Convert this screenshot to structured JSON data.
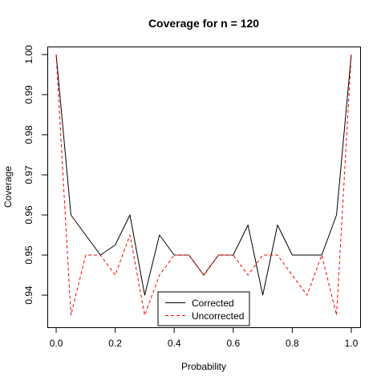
{
  "chart_data": {
    "type": "line",
    "title": "Coverage for n = 120",
    "xlabel": "Probability",
    "ylabel": "Coverage",
    "xlim": [
      -0.03,
      1.03
    ],
    "ylim": [
      0.932,
      1.002
    ],
    "x_ticks": [
      0.0,
      0.2,
      0.4,
      0.6,
      0.8,
      1.0
    ],
    "x_tick_labels": [
      "0.0",
      "0.2",
      "0.4",
      "0.6",
      "0.8",
      "1.0"
    ],
    "y_ticks": [
      0.94,
      0.95,
      0.96,
      0.97,
      0.98,
      0.99,
      1.0
    ],
    "y_tick_labels": [
      "0.94",
      "0.95",
      "0.96",
      "0.97",
      "0.98",
      "0.99",
      "1.00"
    ],
    "grid": false,
    "legend_position": "bottom-center",
    "x": [
      0.0,
      0.05,
      0.1,
      0.15,
      0.2,
      0.25,
      0.3,
      0.35,
      0.4,
      0.45,
      0.5,
      0.55,
      0.6,
      0.65,
      0.7,
      0.75,
      0.8,
      0.85,
      0.9,
      0.95,
      1.0
    ],
    "series": [
      {
        "name": "Corrected",
        "color": "#000000",
        "line_style": "solid",
        "values": [
          1.0,
          0.96,
          0.955,
          0.95,
          0.9525,
          0.96,
          0.94,
          0.955,
          0.95,
          0.95,
          0.945,
          0.95,
          0.95,
          0.9575,
          0.94,
          0.9575,
          0.95,
          0.95,
          0.95,
          0.96,
          1.0
        ]
      },
      {
        "name": "Uncorrected",
        "color": "#ff0000",
        "line_style": "dashed",
        "values": [
          1.0,
          0.935,
          0.95,
          0.95,
          0.945,
          0.955,
          0.935,
          0.945,
          0.95,
          0.95,
          0.945,
          0.95,
          0.95,
          0.945,
          0.95,
          0.95,
          0.945,
          0.94,
          0.95,
          0.935,
          1.0
        ]
      }
    ]
  }
}
